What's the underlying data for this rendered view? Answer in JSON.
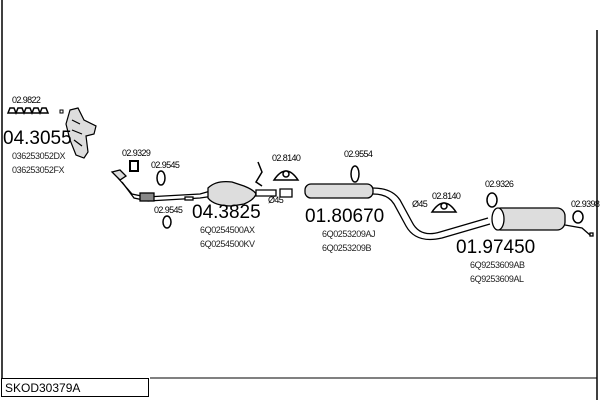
{
  "diagram_code": "SKOD30379A",
  "parts": {
    "gasket_manifold": "02.9822",
    "manifold": {
      "number": "04.3055",
      "refs": [
        "036253052DX",
        "036253052FX"
      ]
    },
    "gasket_front": "02.9329",
    "rubber_mount_1": "02.9545",
    "rubber_mount_2": "02.9545",
    "catalyst": {
      "number": "04.3825",
      "refs": [
        "6Q0254500AX",
        "6Q0254500KV"
      ]
    },
    "clamp_1": "02.8140",
    "clamp_label_1": "Ø45",
    "middle_muffler": {
      "number": "01.80670",
      "refs": [
        "6Q0253209AJ",
        "6Q0253209B"
      ]
    },
    "rubber_mount_3": "02.9554",
    "clamp_label_2": "Ø45",
    "clamp_2": "02.8140",
    "rubber_mount_4": "02.9326",
    "rear_muffler": {
      "number": "01.97450",
      "refs": [
        "6Q9253609AB",
        "6Q9253609AL"
      ]
    },
    "rubber_mount_5": "02.9398"
  }
}
